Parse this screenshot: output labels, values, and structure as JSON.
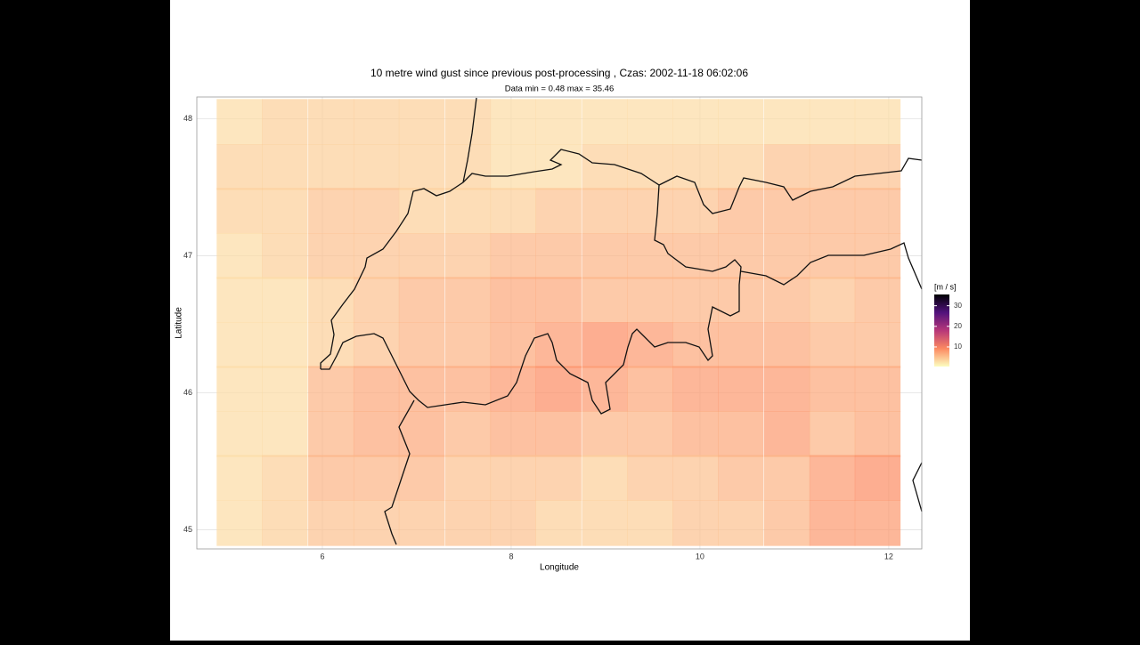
{
  "chart_data": {
    "type": "raster",
    "title": "10 metre wind gust since previous post-processing , Czas: 2002-11-18 06:02:06",
    "subtitle": "Data min = 0.48 max = 35.46",
    "x_label": "Longitude",
    "y_label": "Latitude",
    "xlim": [
      4.67,
      12.35
    ],
    "ylim": [
      44.86,
      48.16
    ],
    "xticks": [
      6,
      8,
      10,
      12
    ],
    "yticks": [
      45,
      46,
      47,
      48
    ],
    "grid": true,
    "x": [
      5.12,
      5.6,
      6.09,
      6.57,
      7.05,
      7.54,
      8.02,
      8.5,
      8.99,
      9.47,
      9.95,
      10.43,
      10.92,
      11.4,
      11.88
    ],
    "y": [
      47.98,
      47.65,
      47.33,
      47.0,
      46.68,
      46.35,
      46.03,
      45.7,
      45.38,
      45.05
    ],
    "values": [
      [
        3,
        4,
        4,
        4,
        4,
        4,
        3,
        3,
        3,
        3,
        3,
        3,
        3,
        3,
        3
      ],
      [
        4,
        4,
        4,
        4,
        4,
        4,
        3,
        3,
        4,
        4,
        4,
        4,
        5,
        5,
        5
      ],
      [
        4,
        4,
        5,
        5,
        4,
        4,
        4,
        5,
        5,
        5,
        5,
        6,
        6,
        6,
        6
      ],
      [
        3,
        4,
        5,
        5,
        5,
        5,
        6,
        6,
        6,
        6,
        6,
        6,
        6,
        6,
        6
      ],
      [
        3,
        3,
        4,
        5,
        6,
        6,
        7,
        7,
        6,
        6,
        6,
        6,
        6,
        5,
        6
      ],
      [
        3,
        3,
        4,
        5,
        6,
        6,
        7,
        8,
        9,
        8,
        7,
        7,
        7,
        6,
        6
      ],
      [
        3,
        3,
        6,
        7,
        7,
        7,
        8,
        9,
        8,
        7,
        8,
        8,
        8,
        7,
        7
      ],
      [
        3,
        3,
        6,
        7,
        7,
        6,
        7,
        7,
        6,
        6,
        7,
        7,
        8,
        6,
        7
      ],
      [
        3,
        4,
        6,
        6,
        6,
        5,
        5,
        5,
        4,
        5,
        5,
        6,
        6,
        8,
        9
      ],
      [
        3,
        4,
        5,
        5,
        5,
        5,
        5,
        4,
        4,
        4,
        5,
        5,
        6,
        8,
        8
      ]
    ],
    "alpha": 0.7,
    "colors": [
      "#fcfdbf",
      "#fc8961",
      "#b73779",
      "#51127c",
      "#000004"
    ],
    "legend": {
      "title": "[m / s]",
      "lim": [
        0.48,
        35.46
      ],
      "ticks": [
        10,
        20,
        30
      ]
    }
  }
}
